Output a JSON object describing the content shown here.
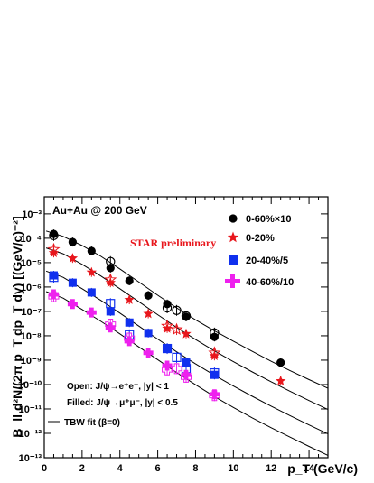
{
  "chart_data": {
    "type": "scatter",
    "title": "Au+Au @ 200 GeV",
    "annotation": "STAR preliminary",
    "xlabel": "p_T (GeV/c)",
    "ylabel": "B_ll d²N/(2π p_T dp_T dy) [(GeV/c)⁻²]",
    "xlim": [
      0,
      15
    ],
    "ylim": [
      1e-13,
      0.005
    ],
    "y_scale": "log",
    "x_ticks": [
      0,
      2,
      4,
      6,
      8,
      10,
      12,
      14
    ],
    "y_ticks": [
      "10⁻¹³",
      "10⁻¹²",
      "10⁻¹¹",
      "10⁻¹⁰",
      "10⁻⁹",
      "10⁻⁸",
      "10⁻⁷",
      "10⁻⁶",
      "10⁻⁵",
      "10⁻⁴",
      "10⁻³"
    ],
    "legend_position": "top-right",
    "notes": [
      "Open: J/ψ→e⁺e⁻, |y| < 1",
      "Filled: J/ψ→μ⁺μ⁻, |y| < 0.5",
      "TBW fit (β=0)"
    ],
    "series": [
      {
        "name": "0-60%×10",
        "color": "#000000",
        "marker": "circle",
        "filled_points": [
          [
            0.5,
            0.00015
          ],
          [
            1.5,
            7e-05
          ],
          [
            2.5,
            3e-05
          ],
          [
            3.5,
            6e-06
          ],
          [
            4.5,
            1.8e-06
          ],
          [
            5.5,
            4.5e-07
          ],
          [
            6.5,
            2e-07
          ],
          [
            7.5,
            6e-08
          ],
          [
            9.0,
            9e-09
          ],
          [
            12.5,
            8e-10
          ]
        ],
        "open_points": [
          [
            0.5,
            0.00013
          ],
          [
            3.5,
            1.1e-05
          ],
          [
            6.5,
            1.4e-07
          ],
          [
            7.0,
            1.1e-07
          ],
          [
            7.5,
            6.5e-08
          ],
          [
            9.0,
            1.3e-08
          ]
        ],
        "fit": [
          [
            0.1,
            0.0002
          ],
          [
            1,
            0.00012
          ],
          [
            2,
            5e-05
          ],
          [
            3,
            1.8e-05
          ],
          [
            4,
            5.5e-06
          ],
          [
            5,
            1.6e-06
          ],
          [
            6,
            4.6e-07
          ],
          [
            7,
            1.4e-07
          ],
          [
            8,
            4.5e-08
          ],
          [
            9,
            1.6e-08
          ],
          [
            10,
            6e-09
          ],
          [
            11,
            2.3e-09
          ],
          [
            12,
            9e-10
          ],
          [
            13,
            3.7e-10
          ],
          [
            14,
            1.6e-10
          ],
          [
            15,
            7e-11
          ]
        ]
      },
      {
        "name": "0-20%",
        "color": "#e8161c",
        "marker": "star",
        "filled_points": [
          [
            0.5,
            2.5e-05
          ],
          [
            1.5,
            1.5e-05
          ],
          [
            2.5,
            4e-06
          ],
          [
            3.5,
            1.5e-06
          ],
          [
            4.5,
            3e-07
          ],
          [
            5.5,
            8e-08
          ],
          [
            6.5,
            2e-08
          ],
          [
            7.5,
            1.2e-08
          ],
          [
            9.0,
            1.5e-09
          ],
          [
            12.5,
            1.4e-10
          ]
        ],
        "open_points": [
          [
            0.5,
            3.5e-05
          ],
          [
            3.5,
            2e-06
          ],
          [
            6.5,
            2.5e-08
          ],
          [
            7.0,
            1.8e-08
          ],
          [
            9.0,
            2e-09
          ]
        ],
        "fit": [
          [
            0.1,
            4e-05
          ],
          [
            1,
            2.3e-05
          ],
          [
            2,
            8.5e-06
          ],
          [
            3,
            2.8e-06
          ],
          [
            4,
            8.5e-07
          ],
          [
            5,
            2.5e-07
          ],
          [
            6,
            7.3e-08
          ],
          [
            7,
            2.2e-08
          ],
          [
            8,
            7e-09
          ],
          [
            9,
            2.4e-09
          ],
          [
            10,
            8.7e-10
          ],
          [
            11,
            3.3e-10
          ],
          [
            12,
            1.3e-10
          ],
          [
            13,
            5.3e-11
          ],
          [
            14,
            2.2e-11
          ],
          [
            15,
            9.5e-12
          ]
        ]
      },
      {
        "name": "20-40%/5",
        "color": "#1030ee",
        "marker": "square",
        "filled_points": [
          [
            0.5,
            3e-06
          ],
          [
            1.5,
            1.5e-06
          ],
          [
            2.5,
            6e-07
          ],
          [
            3.5,
            1e-07
          ],
          [
            4.5,
            3.5e-08
          ],
          [
            5.5,
            1.3e-08
          ],
          [
            6.5,
            3e-09
          ],
          [
            7.5,
            8e-10
          ],
          [
            9.0,
            2.5e-10
          ]
        ],
        "open_points": [
          [
            0.5,
            2.5e-06
          ],
          [
            3.5,
            2.1e-07
          ],
          [
            4.5,
            1.1e-08
          ],
          [
            6.5,
            3e-09
          ],
          [
            7.0,
            1.3e-09
          ],
          [
            7.5,
            4.5e-10
          ],
          [
            9.0,
            3e-10
          ]
        ],
        "fit": [
          [
            0.1,
            4.5e-06
          ],
          [
            1,
            2.5e-06
          ],
          [
            2,
            8.5e-07
          ],
          [
            3,
            2.8e-07
          ],
          [
            4,
            8.5e-08
          ],
          [
            5,
            2.5e-08
          ],
          [
            6,
            7.3e-09
          ],
          [
            7,
            2.2e-09
          ],
          [
            8,
            7e-10
          ],
          [
            9,
            2.4e-10
          ],
          [
            10,
            8.7e-11
          ],
          [
            11,
            3.3e-11
          ],
          [
            12,
            1.3e-11
          ],
          [
            13,
            5.3e-12
          ],
          [
            14,
            2.2e-12
          ],
          [
            15,
            9.5e-13
          ]
        ]
      },
      {
        "name": "40-60%/10",
        "color": "#ee20ee",
        "marker": "cross",
        "filled_points": [
          [
            0.5,
            5e-07
          ],
          [
            1.5,
            2e-07
          ],
          [
            2.5,
            9e-08
          ],
          [
            3.5,
            2.2e-08
          ],
          [
            4.5,
            6e-09
          ],
          [
            5.5,
            2e-09
          ],
          [
            6.5,
            6e-10
          ],
          [
            7.5,
            2.5e-10
          ],
          [
            9.0,
            4e-11
          ]
        ],
        "open_points": [
          [
            0.5,
            4e-07
          ],
          [
            3.5,
            3e-08
          ],
          [
            4.5,
            8e-09
          ],
          [
            6.5,
            4e-10
          ],
          [
            7.0,
            4.5e-10
          ],
          [
            7.5,
            2e-10
          ],
          [
            9.0,
            3.5e-11
          ]
        ],
        "fit": [
          [
            0.1,
            6.5e-07
          ],
          [
            1,
            3.5e-07
          ],
          [
            2,
            1.2e-07
          ],
          [
            3,
            3.9e-08
          ],
          [
            4,
            1.2e-08
          ],
          [
            5,
            3.5e-09
          ],
          [
            6,
            1.05e-09
          ],
          [
            7,
            3.1e-10
          ],
          [
            8,
            9.8e-11
          ],
          [
            9,
            3.2e-11
          ],
          [
            10,
            1.15e-11
          ],
          [
            11,
            4.3e-12
          ],
          [
            12,
            1.7e-12
          ],
          [
            13,
            7e-13
          ],
          [
            14,
            2.9e-13
          ],
          [
            15,
            1.25e-13
          ]
        ]
      }
    ]
  }
}
